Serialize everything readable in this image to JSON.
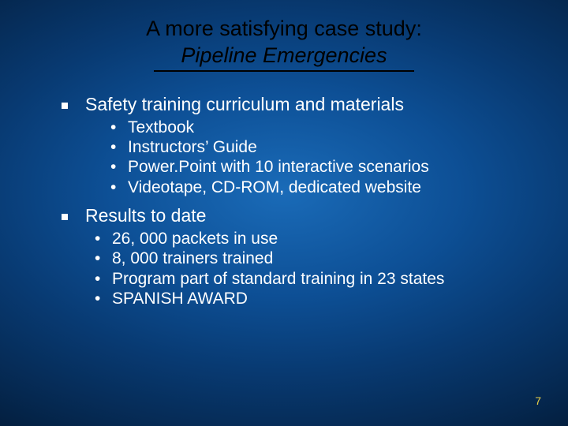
{
  "slide": {
    "background_gradient": {
      "type": "radial",
      "stops": [
        "#1a6bb8",
        "#0d4f95",
        "#083a72",
        "#052850",
        "#031c3a"
      ]
    },
    "text_color": "#ffffff",
    "title_color": "#000000",
    "page_number_color": "#e8d048",
    "font_family": "Verdana",
    "title_fontsize": 27,
    "body_fontsize": 23,
    "sub_fontsize": 21
  },
  "title": {
    "line1": "A more satisfying case study:",
    "line2": "Pipeline Emergencies"
  },
  "sections": [
    {
      "heading": "Safety training curriculum and materials",
      "items": [
        "Textbook",
        "Instructors’ Guide",
        "Power.Point with 10 interactive scenarios",
        "Videotape, CD-ROM, dedicated website"
      ]
    },
    {
      "heading": "Results to date",
      "items": [
        "26, 000 packets in use",
        "8, 000 trainers trained",
        "Program part of standard training in 23 states",
        "SPANISH AWARD"
      ]
    }
  ],
  "page_number": "7"
}
